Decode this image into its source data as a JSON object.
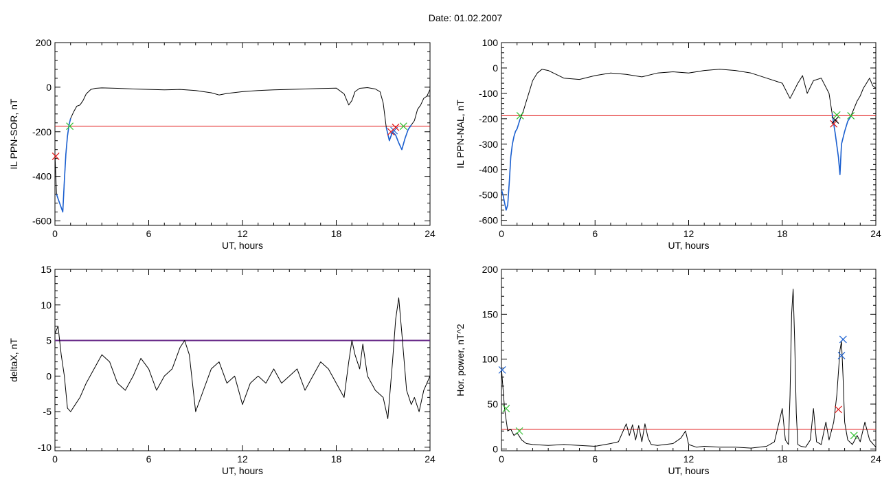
{
  "header": {
    "date_label": "Date:  01.02.2007"
  },
  "chart_data": [
    {
      "type": "line",
      "ylabel": "IL PPN-SOR, nT",
      "xlabel": "UT, hours",
      "xlim": [
        0,
        24
      ],
      "ylim": [
        -620,
        200
      ],
      "xticks": [
        0,
        6,
        12,
        18,
        24
      ],
      "yticks": [
        -600,
        -400,
        -200,
        0,
        200
      ],
      "threshold": {
        "value": -175,
        "color": "#e01010"
      },
      "series": [
        {
          "role": "main",
          "color": "#000000",
          "x": [
            0,
            0.1,
            0.2,
            0.3,
            0.4,
            0.5,
            0.6,
            0.7,
            0.8,
            0.9,
            1.0,
            1.2,
            1.4,
            1.6,
            1.8,
            2.0,
            2.3,
            2.6,
            3,
            4,
            5,
            6,
            7,
            8,
            9,
            10,
            10.5,
            11,
            12,
            13,
            14,
            15,
            16,
            17,
            18,
            18.5,
            18.8,
            19.0,
            19.2,
            19.5,
            20,
            20.5,
            20.8,
            21.0,
            21.2,
            21.4,
            21.6,
            21.8,
            22.0,
            22.2,
            22.4,
            22.6,
            22.8,
            23.0,
            23.2,
            23.4,
            23.6,
            23.8,
            24.0
          ],
          "y": [
            -300,
            -480,
            -500,
            -520,
            -540,
            -560,
            -420,
            -300,
            -220,
            -170,
            -140,
            -110,
            -85,
            -80,
            -60,
            -30,
            -10,
            -5,
            -3,
            -5,
            -8,
            -10,
            -12,
            -10,
            -15,
            -25,
            -35,
            -28,
            -20,
            -15,
            -12,
            -10,
            -8,
            -6,
            -4,
            -30,
            -80,
            -60,
            -20,
            -5,
            -2,
            -8,
            -20,
            -70,
            -180,
            -240,
            -200,
            -215,
            -250,
            -280,
            -230,
            -190,
            -170,
            -150,
            -100,
            -80,
            -50,
            -40,
            -10
          ]
        },
        {
          "role": "segment",
          "color": "#1a5fd0",
          "x": [
            0.1,
            0.2,
            0.3,
            0.4,
            0.5,
            0.6,
            0.7,
            0.8,
            0.9,
            1.0
          ],
          "y": [
            -480,
            -500,
            -520,
            -540,
            -560,
            -420,
            -300,
            -220,
            -170,
            -140
          ]
        },
        {
          "role": "segment",
          "color": "#1a5fd0",
          "x": [
            21.2,
            21.4,
            21.6,
            21.8,
            22.0,
            22.2,
            22.4,
            22.6,
            22.8
          ],
          "y": [
            -180,
            -240,
            -200,
            -215,
            -250,
            -280,
            -230,
            -190,
            -170
          ]
        }
      ],
      "markers": [
        {
          "x": 0.05,
          "y": -310,
          "color": "#e01010",
          "symbol": "x"
        },
        {
          "x": 0.95,
          "y": -175,
          "color": "#30c030",
          "symbol": "x"
        },
        {
          "x": 21.5,
          "y": -200,
          "color": "#e01010",
          "symbol": "x"
        },
        {
          "x": 21.7,
          "y": -195,
          "color": "#1a5fd0",
          "symbol": "x"
        },
        {
          "x": 21.8,
          "y": -180,
          "color": "#e01010",
          "symbol": "x"
        },
        {
          "x": 22.3,
          "y": -175,
          "color": "#30c030",
          "symbol": "x"
        }
      ]
    },
    {
      "type": "line",
      "ylabel": "IL PPN-NAL, nT",
      "xlabel": "UT, hours",
      "xlim": [
        0,
        24
      ],
      "ylim": [
        -620,
        100
      ],
      "xticks": [
        0,
        6,
        12,
        18,
        24
      ],
      "yticks": [
        -600,
        -500,
        -400,
        -300,
        -200,
        -100,
        0,
        100
      ],
      "threshold": {
        "value": -188,
        "color": "#e01010"
      },
      "series": [
        {
          "role": "main",
          "color": "#000000",
          "x": [
            0,
            0.1,
            0.2,
            0.3,
            0.4,
            0.5,
            0.6,
            0.7,
            0.8,
            0.9,
            1.0,
            1.2,
            1.4,
            1.6,
            1.8,
            2.0,
            2.3,
            2.6,
            3,
            4,
            5,
            6,
            7,
            8,
            9,
            10,
            11,
            12,
            13,
            14,
            15,
            16,
            17,
            18,
            18.5,
            19.0,
            19.3,
            19.6,
            20.0,
            20.5,
            21.0,
            21.2,
            21.4,
            21.6,
            21.7,
            21.8,
            22.0,
            22.2,
            22.4,
            22.6,
            22.8,
            23.0,
            23.2,
            23.4,
            23.6,
            23.8,
            24.0
          ],
          "y": [
            -480,
            -500,
            -530,
            -560,
            -540,
            -450,
            -350,
            -300,
            -270,
            -250,
            -240,
            -200,
            -170,
            -130,
            -90,
            -50,
            -20,
            -5,
            -10,
            -40,
            -45,
            -30,
            -20,
            -25,
            -35,
            -20,
            -15,
            -20,
            -10,
            -5,
            -10,
            -20,
            -40,
            -60,
            -120,
            -60,
            -30,
            -100,
            -50,
            -40,
            -100,
            -180,
            -260,
            -350,
            -420,
            -300,
            -250,
            -210,
            -190,
            -160,
            -130,
            -110,
            -80,
            -60,
            -40,
            -70,
            -80
          ]
        },
        {
          "role": "segment",
          "color": "#1a5fd0",
          "x": [
            0,
            0.1,
            0.2,
            0.3,
            0.4,
            0.5,
            0.6,
            0.7,
            0.8,
            0.9,
            1.0,
            1.2
          ],
          "y": [
            -480,
            -500,
            -530,
            -560,
            -540,
            -450,
            -350,
            -300,
            -270,
            -250,
            -240,
            -200
          ]
        },
        {
          "role": "segment",
          "color": "#1a5fd0",
          "x": [
            21.2,
            21.4,
            21.6,
            21.7,
            21.8,
            22.0,
            22.2,
            22.4
          ],
          "y": [
            -180,
            -260,
            -350,
            -420,
            -300,
            -250,
            -210,
            -190
          ]
        }
      ],
      "markers": [
        {
          "x": 1.2,
          "y": -188,
          "color": "#30c030",
          "symbol": "x"
        },
        {
          "x": 21.3,
          "y": -220,
          "color": "#e01010",
          "symbol": "x"
        },
        {
          "x": 21.4,
          "y": -205,
          "color": "#000000",
          "symbol": "x"
        },
        {
          "x": 21.5,
          "y": -185,
          "color": "#30c030",
          "symbol": "x"
        },
        {
          "x": 22.4,
          "y": -188,
          "color": "#30c030",
          "symbol": "x"
        }
      ]
    },
    {
      "type": "line",
      "ylabel": "deltaX, nT",
      "xlabel": "UT, hours",
      "xlim": [
        0,
        24
      ],
      "ylim": [
        -10.5,
        15
      ],
      "xticks": [
        0,
        6,
        12,
        18,
        24
      ],
      "yticks": [
        -10,
        -5,
        0,
        5,
        10,
        15
      ],
      "threshold": {
        "value": 5,
        "color": "#6a2c8a",
        "width": 2
      },
      "series": [
        {
          "role": "main",
          "color": "#000000",
          "x": [
            0,
            0.2,
            0.4,
            0.6,
            0.8,
            1.0,
            1.3,
            1.6,
            2.0,
            2.5,
            3.0,
            3.5,
            4.0,
            4.5,
            5.0,
            5.5,
            6.0,
            6.5,
            7.0,
            7.5,
            8.0,
            8.3,
            8.6,
            9.0,
            9.5,
            10.0,
            10.5,
            11.0,
            11.5,
            12.0,
            12.5,
            13.0,
            13.5,
            14.0,
            14.5,
            15.0,
            15.5,
            16.0,
            16.5,
            17.0,
            17.5,
            18.0,
            18.5,
            18.8,
            19.0,
            19.2,
            19.5,
            19.7,
            20.0,
            20.5,
            21.0,
            21.3,
            21.6,
            21.8,
            22.0,
            22.2,
            22.5,
            22.8,
            23.0,
            23.3,
            23.6,
            24.0
          ],
          "y": [
            6,
            7,
            3,
            0,
            -4.5,
            -5,
            -4,
            -3,
            -1,
            1,
            3,
            2,
            -1,
            -2,
            0,
            2.5,
            1,
            -2,
            0,
            1,
            4,
            5,
            3,
            -5,
            -2,
            1,
            2,
            -1,
            0,
            -4,
            -1,
            0,
            -1,
            1,
            -1,
            0,
            1,
            -2,
            0,
            2,
            1,
            -1,
            -3,
            2,
            5,
            3,
            1,
            4.5,
            0,
            -2,
            -3,
            -6,
            2,
            8,
            11,
            6,
            -2,
            -4,
            -3,
            -5,
            -2,
            0
          ]
        }
      ],
      "markers": []
    },
    {
      "type": "line",
      "ylabel": "Hor. power, nT^2",
      "xlabel": "UT, hours",
      "xlim": [
        0,
        24
      ],
      "ylim": [
        -2,
        200
      ],
      "xticks": [
        0,
        6,
        12,
        18,
        24
      ],
      "yticks": [
        0,
        50,
        100,
        150,
        200
      ],
      "threshold": {
        "value": 22,
        "color": "#e01010"
      },
      "series": [
        {
          "role": "main",
          "color": "#000000",
          "x": [
            0,
            0.2,
            0.4,
            0.6,
            0.8,
            1.0,
            1.3,
            1.6,
            2.0,
            3,
            4,
            5,
            6,
            7,
            7.5,
            8.0,
            8.2,
            8.4,
            8.6,
            8.8,
            9.0,
            9.2,
            9.4,
            9.6,
            10,
            11,
            11.5,
            11.8,
            12.0,
            12.5,
            13,
            14,
            15,
            16,
            17,
            17.5,
            17.8,
            18.0,
            18.2,
            18.4,
            18.5,
            18.6,
            18.7,
            18.8,
            18.9,
            19.0,
            19.2,
            19.5,
            19.8,
            20.0,
            20.2,
            20.5,
            20.8,
            21.0,
            21.3,
            21.5,
            21.7,
            21.8,
            21.9,
            22.0,
            22.2,
            22.5,
            22.8,
            23.0,
            23.3,
            23.6,
            24.0
          ],
          "y": [
            90,
            45,
            20,
            22,
            15,
            18,
            10,
            6,
            5,
            4,
            5,
            4,
            3,
            6,
            8,
            28,
            15,
            27,
            10,
            26,
            8,
            28,
            12,
            5,
            4,
            6,
            12,
            20,
            5,
            2,
            3,
            2,
            2,
            1,
            3,
            8,
            30,
            45,
            10,
            5,
            60,
            150,
            178,
            120,
            40,
            5,
            3,
            2,
            10,
            45,
            8,
            5,
            30,
            10,
            30,
            60,
            110,
            120,
            80,
            30,
            10,
            5,
            15,
            8,
            30,
            10,
            2
          ]
        }
      ],
      "markers": [
        {
          "x": 0.05,
          "y": 88,
          "color": "#1a5fd0",
          "symbol": "x"
        },
        {
          "x": 0.3,
          "y": 45,
          "color": "#30c030",
          "symbol": "x"
        },
        {
          "x": 1.15,
          "y": 20,
          "color": "#30c030",
          "symbol": "x"
        },
        {
          "x": 21.6,
          "y": 44,
          "color": "#e01010",
          "symbol": "x"
        },
        {
          "x": 21.8,
          "y": 104,
          "color": "#1a5fd0",
          "symbol": "x"
        },
        {
          "x": 21.9,
          "y": 122,
          "color": "#1a5fd0",
          "symbol": "x"
        },
        {
          "x": 22.6,
          "y": 15,
          "color": "#30c030",
          "symbol": "x"
        }
      ]
    }
  ]
}
